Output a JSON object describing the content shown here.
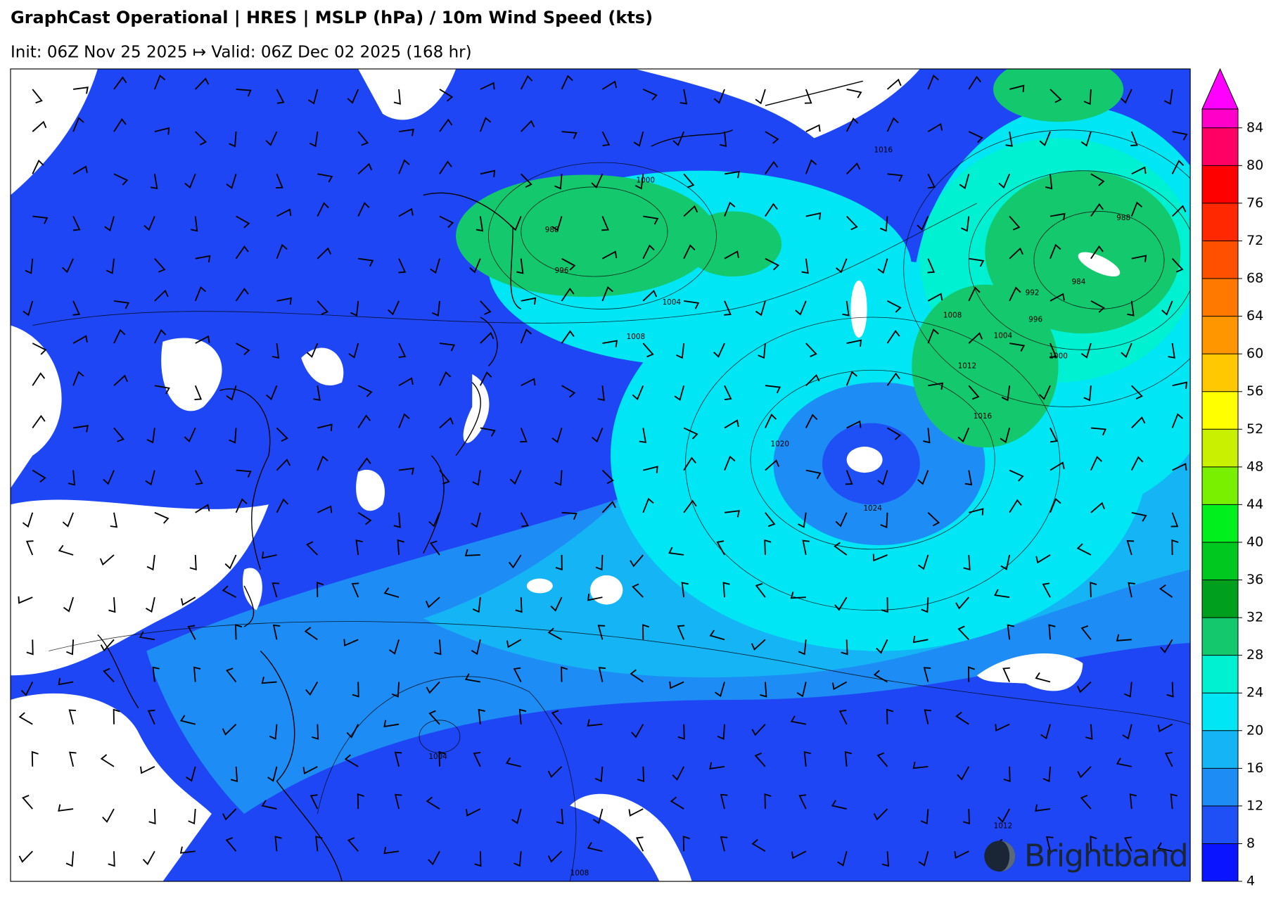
{
  "header": {
    "title": "GraphCast Operational | HRES | MSLP (hPa) / 10m Wind Speed (kts)",
    "subtitle": "Init: 06Z Nov 25 2025 ↦ Valid: 06Z Dec 02 2025 (168 hr)"
  },
  "map": {
    "isobar_labels": [
      "1016",
      "1000",
      "988",
      "996",
      "1004",
      "1008",
      "988",
      "984",
      "992",
      "996",
      "1008",
      "1004",
      "1000",
      "1012",
      "1016",
      "1020",
      "1024",
      "1004",
      "1008",
      "1012"
    ],
    "brand": "Brightband"
  },
  "colorbar": {
    "range": [
      4,
      86
    ],
    "ticks": [
      4,
      8,
      12,
      16,
      20,
      24,
      28,
      32,
      36,
      40,
      44,
      48,
      52,
      56,
      60,
      64,
      68,
      72,
      76,
      80,
      84
    ],
    "colors": [
      "#0a14ff",
      "#1e50f5",
      "#1e8cf5",
      "#14b4f5",
      "#00e6f5",
      "#00f0d2",
      "#14c86e",
      "#00a01e",
      "#00c81e",
      "#00f01e",
      "#78f000",
      "#c8f000",
      "#ffff00",
      "#ffc800",
      "#ff9600",
      "#ff7800",
      "#ff5000",
      "#ff2800",
      "#ff0000",
      "#ff0064",
      "#ff00c8"
    ],
    "extend_color": "#ff00ff"
  }
}
